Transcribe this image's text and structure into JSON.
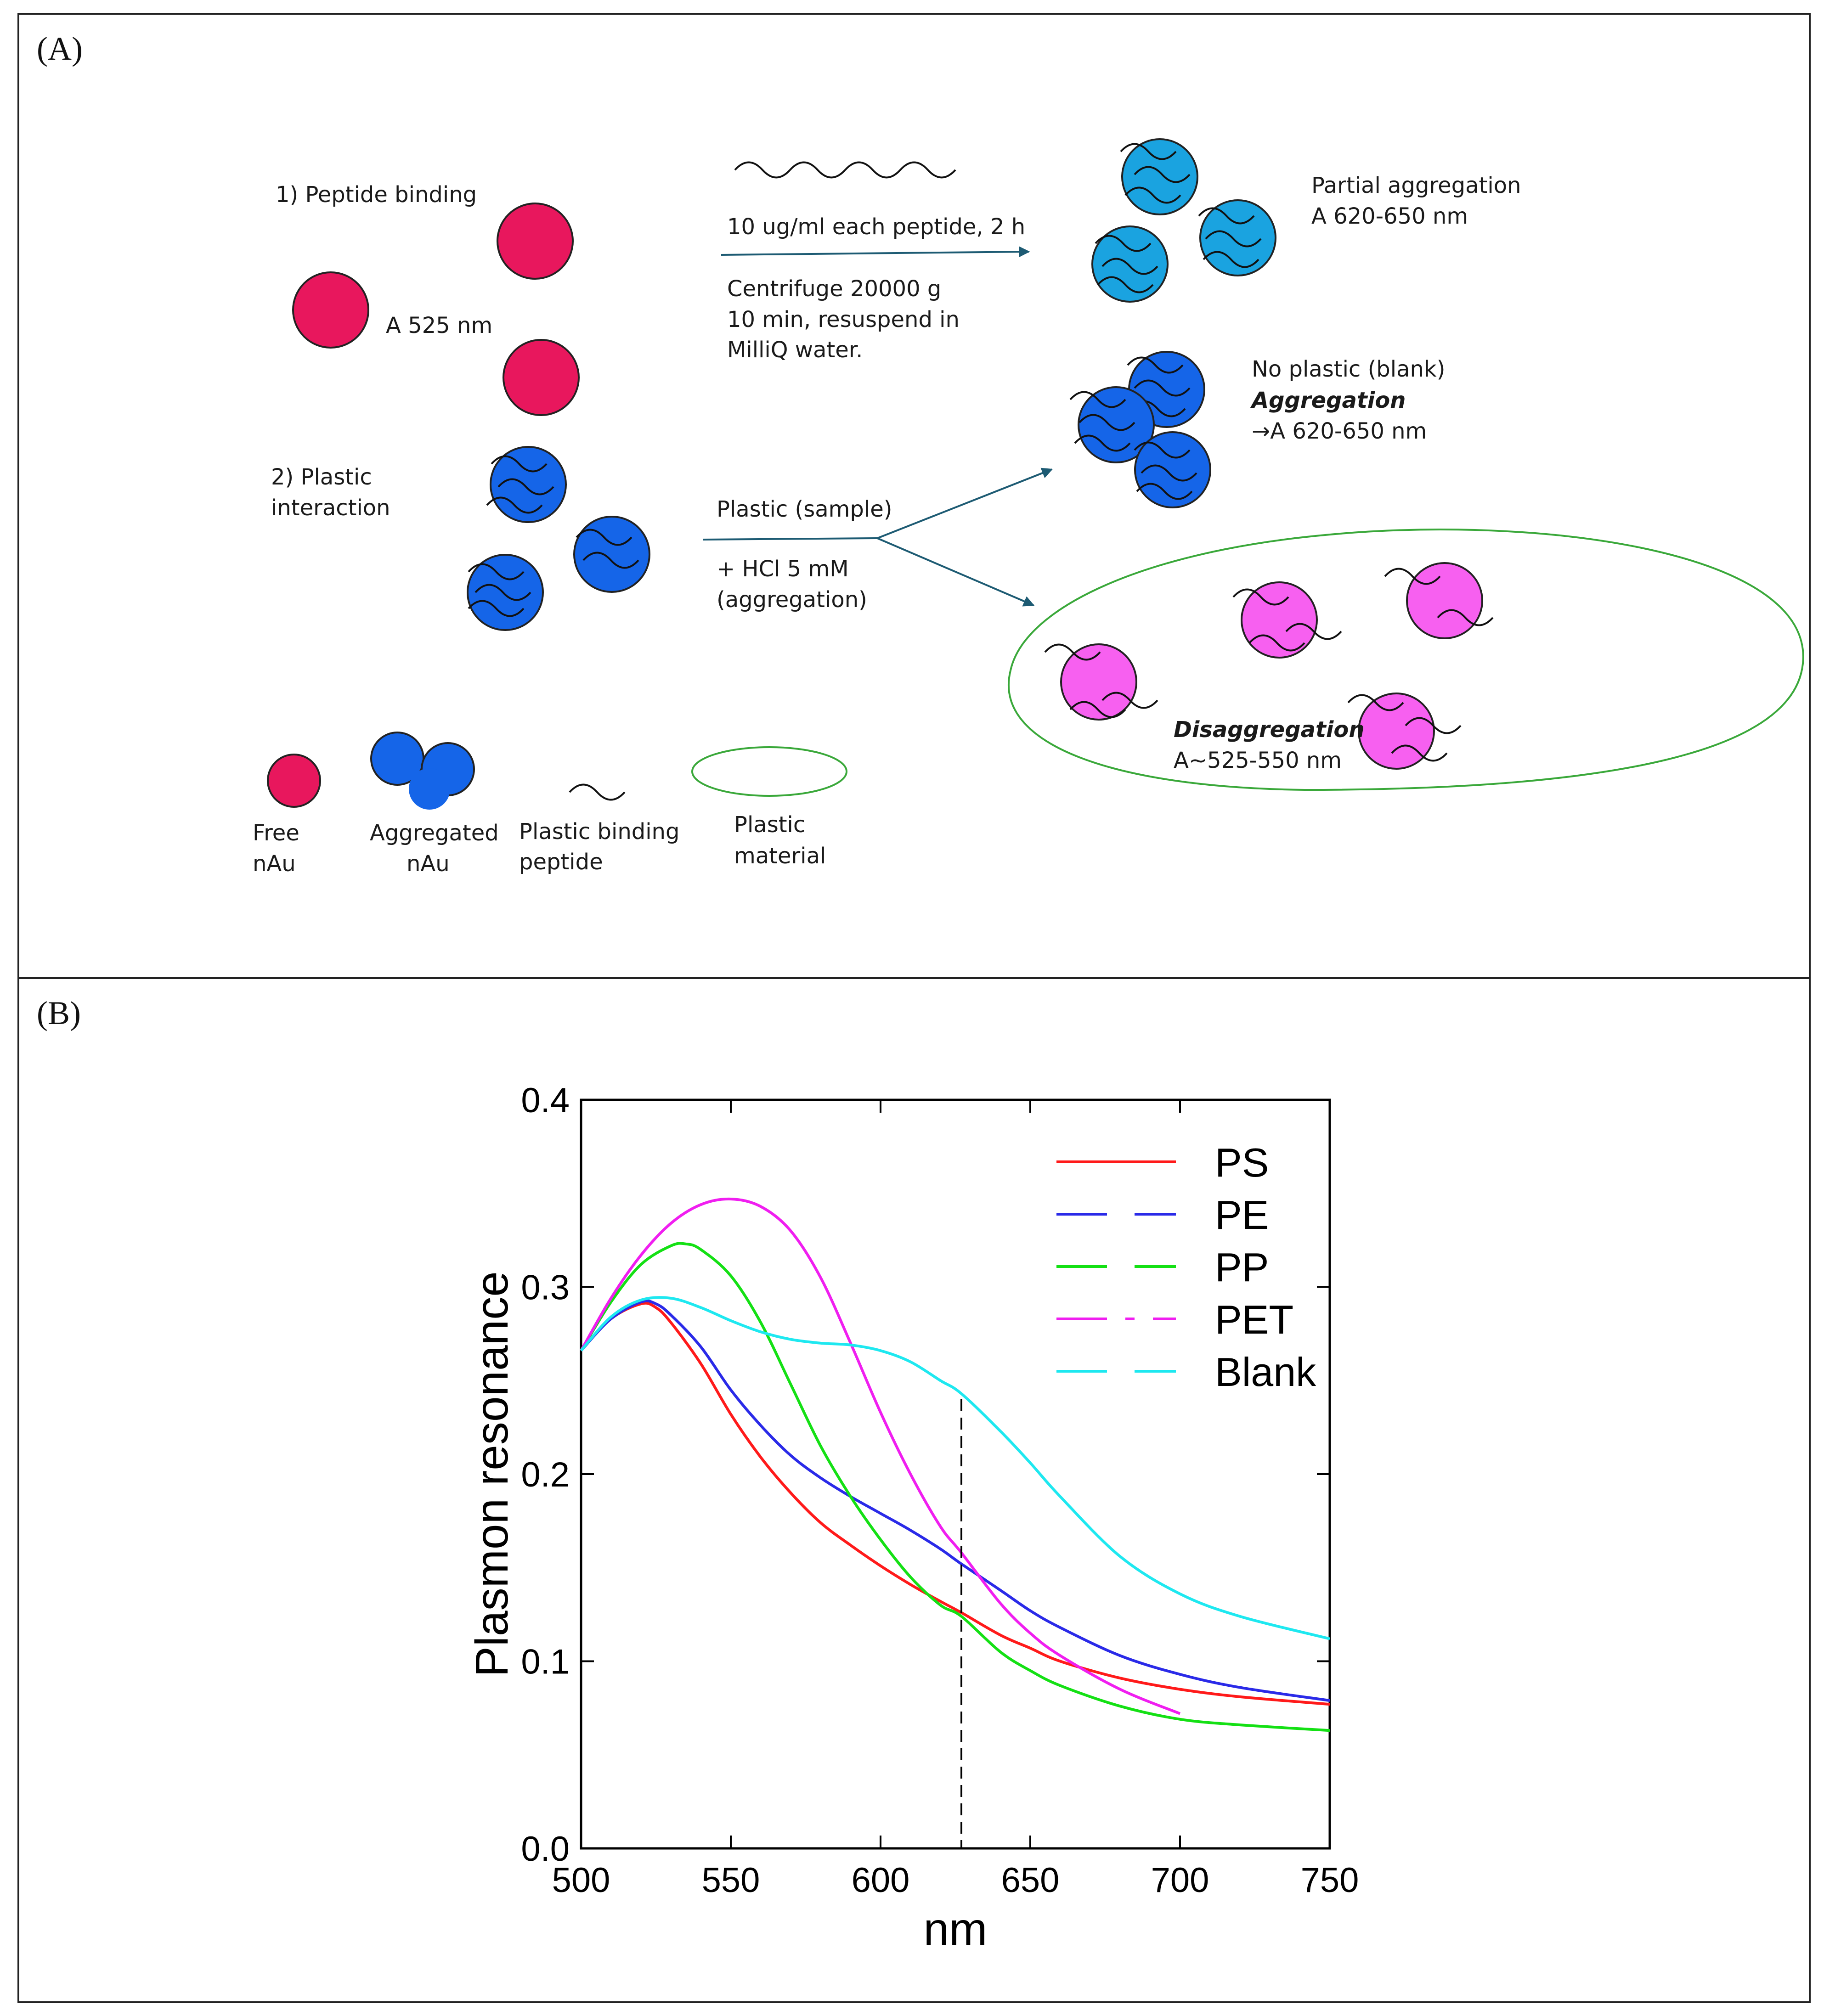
{
  "panel_a": {
    "label": "(A)",
    "step1_label": "1) Peptide binding",
    "free_absorbance": "A 525 nm",
    "step2_label_line1": "2) Plastic",
    "step2_label_line2": "interaction",
    "incubation_condition": "10 ug/ml each peptide, 2 h",
    "centrifuge_line1": "Centrifuge 20000 g",
    "centrifuge_line2": "10 min, resuspend in",
    "centrifuge_line3": "MilliQ water.",
    "partial_aggregation_line1": "Partial aggregation",
    "partial_aggregation_line2": "A 620-650 nm",
    "sample_label": "Plastic (sample)",
    "hcl_line1": "+ HCl 5 mM",
    "hcl_line2": "(aggregation)",
    "blank_line1": "No plastic (blank)",
    "blank_line2": "Aggregation",
    "blank_line3": "→A  620-650 nm",
    "disaggregation_line1": "Disaggregation",
    "disaggregation_line2": "A~525-550 nm",
    "legend": {
      "free_line1": "Free",
      "free_line2": "nAu",
      "aggregated_line1": "Aggregated",
      "aggregated_line2": "nAu",
      "peptide_line1": "Plastic binding",
      "peptide_line2": "peptide",
      "material_line1": "Plastic",
      "material_line2": "material"
    },
    "colors": {
      "free_nau": "#e8175d",
      "aggregated_nau": "#1565e8",
      "partial_nau": "#1aa3e0",
      "disaggregated_nau": "#f760f0",
      "plastic_outline": "#3aa83a",
      "arrow": "#1d5b73"
    }
  },
  "panel_b": {
    "label": "(B)"
  },
  "chart_data": {
    "type": "line",
    "xlabel": "nm",
    "ylabel": "Plasmon resonance",
    "xlim": [
      500,
      750
    ],
    "ylim": [
      0.0,
      0.4
    ],
    "xticks": [
      "500",
      "550",
      "600",
      "650",
      "700",
      "750"
    ],
    "yticks": [
      "0.0",
      "0.1",
      "0.2",
      "0.3",
      "0.4"
    ],
    "grid": false,
    "legend_position": "top-right",
    "vline": {
      "x": 627,
      "y_top": 0.24
    },
    "series": [
      {
        "name": "PS",
        "color": "#ff1a1a",
        "legend_dash": "solid",
        "x": [
          500,
          510,
          520,
          525,
          530,
          540,
          550,
          560,
          570,
          580,
          590,
          600,
          610,
          620,
          627,
          640,
          650,
          660,
          680,
          700,
          720,
          750
        ],
        "y": [
          0.266,
          0.283,
          0.291,
          0.289,
          0.281,
          0.259,
          0.232,
          0.209,
          0.19,
          0.174,
          0.162,
          0.151,
          0.141,
          0.132,
          0.126,
          0.114,
          0.107,
          0.1,
          0.091,
          0.085,
          0.081,
          0.077
        ]
      },
      {
        "name": "PE",
        "color": "#2a2ae8",
        "legend_dash": "dashed",
        "x": [
          500,
          510,
          520,
          525,
          530,
          540,
          550,
          560,
          570,
          580,
          590,
          600,
          610,
          620,
          627,
          640,
          650,
          660,
          680,
          700,
          720,
          750
        ],
        "y": [
          0.266,
          0.283,
          0.292,
          0.291,
          0.285,
          0.268,
          0.245,
          0.226,
          0.21,
          0.198,
          0.188,
          0.179,
          0.17,
          0.16,
          0.152,
          0.138,
          0.127,
          0.118,
          0.103,
          0.093,
          0.086,
          0.079
        ]
      },
      {
        "name": "PP",
        "color": "#14e014",
        "legend_dash": "dashed",
        "x": [
          500,
          510,
          520,
          530,
          535,
          540,
          550,
          560,
          570,
          580,
          590,
          600,
          610,
          620,
          627,
          640,
          650,
          660,
          680,
          700,
          720,
          750
        ],
        "y": [
          0.266,
          0.292,
          0.312,
          0.322,
          0.323,
          0.32,
          0.306,
          0.281,
          0.248,
          0.215,
          0.188,
          0.165,
          0.145,
          0.13,
          0.124,
          0.105,
          0.095,
          0.087,
          0.076,
          0.069,
          0.066,
          0.063
        ]
      },
      {
        "name": "PET",
        "color": "#f01ef0",
        "legend_dash": "dashdot",
        "x": [
          500,
          510,
          520,
          530,
          540,
          550,
          560,
          570,
          580,
          590,
          600,
          610,
          620,
          627,
          640,
          650,
          660,
          680,
          700
        ],
        "y": [
          0.266,
          0.294,
          0.317,
          0.334,
          0.344,
          0.347,
          0.343,
          0.33,
          0.305,
          0.27,
          0.233,
          0.2,
          0.172,
          0.158,
          0.131,
          0.115,
          0.103,
          0.085,
          0.072
        ]
      },
      {
        "name": "Blank",
        "color": "#1ee8f0",
        "legend_dash": "dashed",
        "x": [
          500,
          510,
          520,
          530,
          540,
          550,
          560,
          570,
          580,
          590,
          600,
          610,
          620,
          627,
          640,
          650,
          660,
          680,
          700,
          720,
          750
        ],
        "y": [
          0.266,
          0.284,
          0.293,
          0.294,
          0.289,
          0.282,
          0.276,
          0.272,
          0.27,
          0.269,
          0.266,
          0.26,
          0.25,
          0.243,
          0.223,
          0.206,
          0.188,
          0.156,
          0.136,
          0.124,
          0.112
        ]
      }
    ]
  }
}
